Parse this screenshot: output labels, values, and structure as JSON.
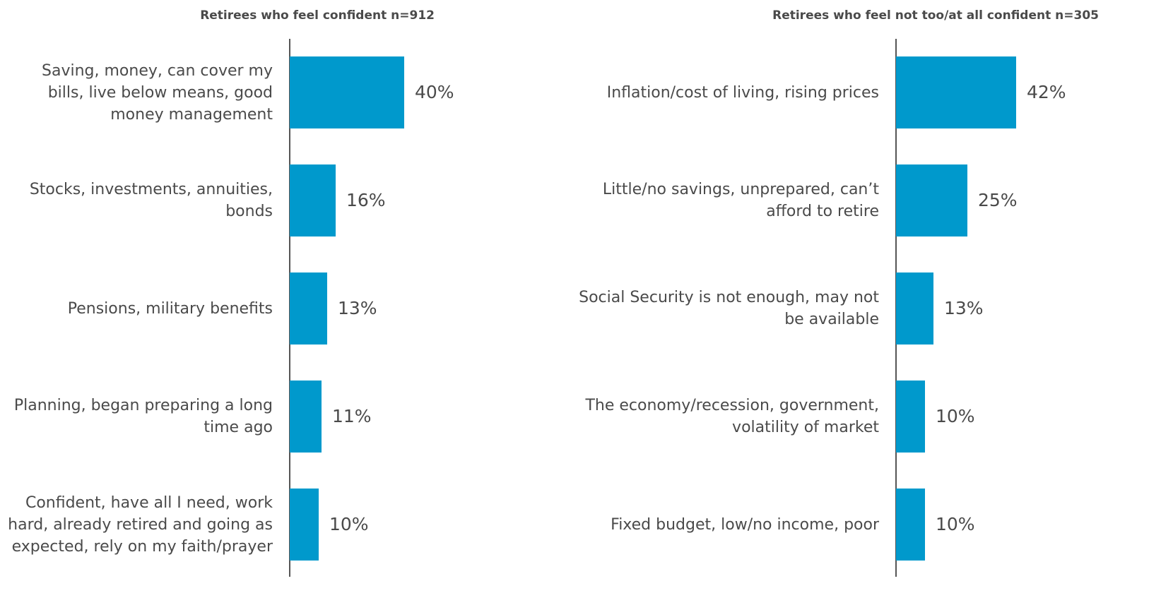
{
  "chart_data": [
    {
      "type": "bar",
      "orientation": "horizontal",
      "title": "Retirees who feel confident n=912",
      "categories": [
        "Saving, money, can cover my bills, live below means, good money management",
        "Stocks, investments, annuities, bonds",
        "Pensions, military benefits",
        "Planning, began preparing a long time ago",
        "Confident, have all I need, work hard, already retired and going as expected, rely on my faith/prayer"
      ],
      "values": [
        40,
        16,
        13,
        11,
        10
      ],
      "value_labels": [
        "40%",
        "16%",
        "13%",
        "11%",
        "10%"
      ],
      "unit": "%",
      "xlim": [
        0,
        100
      ],
      "grid": false,
      "legend": "none",
      "bar_color": "#0099CC"
    },
    {
      "type": "bar",
      "orientation": "horizontal",
      "title": "Retirees who feel not too/at all confident n=305",
      "categories": [
        "Inflation/cost of living, rising prices",
        "Little/no savings, unprepared, can’t afford to retire",
        "Social Security is not enough, may not be available",
        "The economy/recession, government, volatility of market",
        "Fixed budget, low/no income, poor"
      ],
      "values": [
        42,
        25,
        13,
        10,
        10
      ],
      "value_labels": [
        "42%",
        "25%",
        "13%",
        "10%",
        "10%"
      ],
      "unit": "%",
      "xlim": [
        0,
        100
      ],
      "grid": false,
      "legend": "none",
      "bar_color": "#0099CC"
    }
  ]
}
